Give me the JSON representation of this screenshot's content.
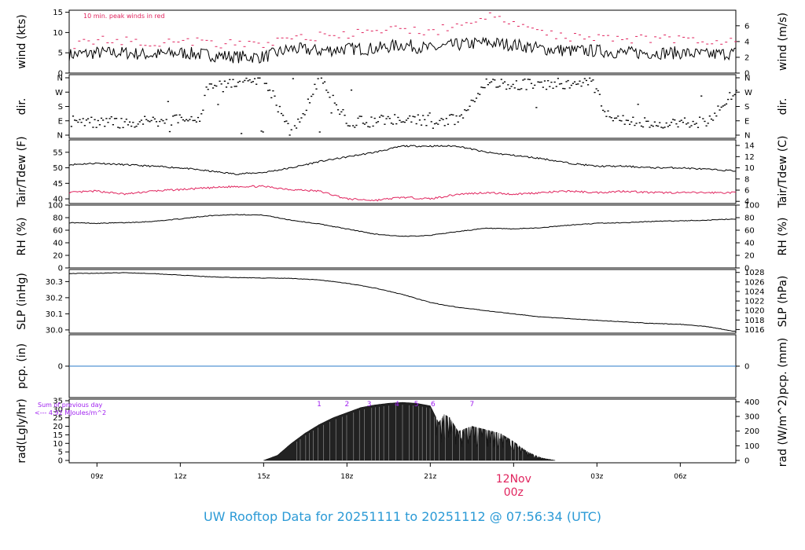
{
  "footer_title": "UW Rooftop Data for 20251111  to  20251112 @ 07:56:34  (UTC)",
  "colors": {
    "main": "#000000",
    "red": "#e0245e",
    "blue": "#2b7bc8",
    "purple": "#a020f0",
    "title": "#2b9ad6"
  },
  "chart_data": [
    {
      "type": "line",
      "panel": "wind",
      "ylabel_left": "wind (kts)",
      "ylabel_right": "wind (m/s)",
      "ylim": [
        0,
        15
      ],
      "yticks_left": [
        0,
        5,
        10,
        15
      ],
      "yticks_right": [
        0,
        2,
        4,
        6
      ],
      "annotation": "10 min. peak winds in red",
      "series": [
        {
          "name": "wind",
          "color": "#000000",
          "x": [
            8.0,
            9,
            10,
            11,
            12,
            13,
            14,
            15,
            16,
            17,
            18,
            19,
            20,
            21,
            22,
            23,
            24,
            25,
            26,
            27,
            28,
            29,
            30,
            31,
            32.0
          ],
          "values": [
            4.5,
            5,
            5,
            4.5,
            5,
            4.5,
            4,
            4,
            6,
            5.5,
            6,
            6,
            7,
            6,
            7,
            7.5,
            7,
            6,
            5.5,
            5.5,
            5,
            5,
            5,
            4.5,
            5
          ]
        },
        {
          "name": "10 min. peak winds",
          "color": "#e0245e",
          "x": [
            8.0,
            9,
            10,
            11,
            12,
            13,
            14,
            15,
            16,
            17,
            18,
            19,
            20,
            21,
            22,
            23,
            24,
            25,
            26,
            27,
            28,
            29,
            30,
            31,
            32.0
          ],
          "values": [
            7,
            8,
            8,
            7.5,
            8,
            7.5,
            7,
            7,
            9,
            9,
            9.5,
            10,
            11,
            10,
            12,
            14,
            12,
            10,
            9,
            9,
            8.5,
            8.5,
            8.5,
            8,
            8
          ]
        }
      ]
    },
    {
      "type": "scatter",
      "panel": "dir",
      "ylabel_left": "dir.",
      "ylabel_right": "dir.",
      "ytick_labels": [
        "N",
        "E",
        "S",
        "W",
        "N"
      ],
      "series": [
        {
          "name": "dir",
          "x": [
            8.0,
            9,
            10,
            11,
            12,
            12.7,
            13,
            13.5,
            14,
            14.5,
            15,
            16,
            17,
            18,
            19,
            20,
            21,
            22,
            23,
            24,
            25,
            26,
            26.8,
            27.3,
            28,
            29,
            30,
            31,
            32.0
          ],
          "values": [
            90,
            80,
            80,
            85,
            95,
            110,
            340,
            300,
            330,
            350,
            355,
            0,
            355,
            80,
            90,
            100,
            90,
            100,
            330,
            320,
            320,
            325,
            330,
            140,
            90,
            80,
            80,
            85,
            300
          ]
        }
      ]
    },
    {
      "type": "line",
      "panel": "temp",
      "ylabel_left": "Tair/Tdew (F)",
      "ylabel_right": "Tair/Tdew (C)",
      "ylim": [
        38.5,
        59
      ],
      "yticks_left": [
        40,
        45,
        50,
        55
      ],
      "yticks_right": [
        4,
        6,
        8,
        10,
        12,
        14
      ],
      "series": [
        {
          "name": "Tair",
          "color": "#000000",
          "x": [
            8.0,
            9,
            10,
            11,
            12,
            13,
            14,
            15,
            16,
            17,
            18,
            19,
            20,
            21,
            22,
            23,
            24,
            25,
            26,
            27,
            28,
            29,
            30,
            31,
            32.0
          ],
          "values": [
            51,
            51.5,
            51,
            50.5,
            50,
            49,
            48,
            48.5,
            50,
            52,
            53.5,
            55,
            57,
            57,
            57,
            55,
            54,
            53,
            51.5,
            50.5,
            50.5,
            50,
            50,
            49.5,
            49
          ]
        },
        {
          "name": "Tdew",
          "color": "#e0245e",
          "x": [
            8.0,
            9,
            10,
            11,
            12,
            13,
            14,
            15,
            16,
            17,
            18,
            19,
            20,
            21,
            22,
            23,
            24,
            25,
            26,
            27,
            28,
            29,
            30,
            31,
            32.0
          ],
          "values": [
            42,
            42.5,
            41.5,
            42.5,
            43,
            43.5,
            44,
            44,
            43,
            42.5,
            40,
            39.5,
            40.5,
            40,
            41.5,
            42,
            41.5,
            42,
            42.5,
            42,
            42.5,
            42,
            42,
            42,
            42
          ]
        }
      ]
    },
    {
      "type": "line",
      "panel": "rh",
      "ylabel_left": "RH (%)",
      "ylabel_right": "RH (%)",
      "ylim": [
        0,
        100
      ],
      "yticks_left": [
        0,
        20,
        40,
        60,
        80,
        100
      ],
      "yticks_right": [
        0,
        20,
        40,
        60,
        80,
        100
      ],
      "series": [
        {
          "name": "RH",
          "color": "#000000",
          "x": [
            8.0,
            9,
            10,
            11,
            12,
            13,
            14,
            15,
            16,
            17,
            18,
            19,
            20,
            21,
            22,
            23,
            24,
            25,
            26,
            27,
            28,
            29,
            30,
            31,
            32.0
          ],
          "values": [
            72,
            71,
            72,
            74,
            78,
            83,
            85,
            84,
            76,
            70,
            62,
            54,
            50,
            52,
            58,
            63,
            62,
            64,
            68,
            71,
            72,
            74,
            75,
            76,
            78
          ]
        }
      ]
    },
    {
      "type": "line",
      "panel": "slp",
      "ylabel_left": "SLP (inHg)",
      "ylabel_right": "SLP (hPa)",
      "ylim": [
        29.98,
        30.375
      ],
      "yticks_left": [
        30.0,
        30.1,
        30.2,
        30.3
      ],
      "yticks_right": [
        1016,
        1018,
        1020,
        1022,
        1024,
        1026,
        1028
      ],
      "series": [
        {
          "name": "SLP",
          "color": "#000000",
          "x": [
            8.0,
            9,
            10,
            11,
            12,
            13,
            14,
            15,
            16,
            17,
            18,
            19,
            20,
            21,
            22,
            23,
            24,
            25,
            26,
            27,
            28,
            29,
            30,
            31,
            32.0
          ],
          "values": [
            30.35,
            30.352,
            30.355,
            30.35,
            30.34,
            30.33,
            30.325,
            30.322,
            30.32,
            30.31,
            30.29,
            30.26,
            30.22,
            30.17,
            30.14,
            30.12,
            30.1,
            30.08,
            30.07,
            30.06,
            30.05,
            30.04,
            30.035,
            30.02,
            29.99
          ]
        }
      ]
    },
    {
      "type": "line",
      "panel": "pcp",
      "ylabel_left": "pcp. (in)",
      "ylabel_right": "pcp. (mm)",
      "yticks_left": [
        0
      ],
      "yticks_right": [
        0
      ],
      "series": [
        {
          "name": "pcp",
          "color": "#2b7bc8",
          "x": [
            8.0,
            32.0
          ],
          "values": [
            0,
            0
          ]
        }
      ]
    },
    {
      "type": "area",
      "panel": "rad",
      "ylabel_left": "rad(Lgly/hr)",
      "ylabel_right": "rad (W/m^2)",
      "ylim": [
        0,
        35
      ],
      "yticks_left": [
        0,
        5,
        10,
        15,
        20,
        25,
        30,
        35
      ],
      "yticks_right": [
        0,
        100,
        200,
        300,
        400
      ],
      "annotation_1": "Sum of previous day",
      "annotation_2": "<--- 4.92 MJoules/m^2",
      "hour_markers": [
        "1",
        "2",
        "3",
        "4",
        "5",
        "6",
        "7"
      ],
      "hour_marker_x": [
        17.0,
        18.0,
        18.8,
        19.8,
        20.5,
        21.1,
        22.5
      ],
      "series": [
        {
          "name": "rad",
          "color": "#000000",
          "x": [
            15.0,
            15.5,
            16.0,
            16.5,
            17.0,
            17.5,
            18.0,
            18.5,
            19.0,
            19.5,
            20.0,
            20.5,
            21.0,
            21.3,
            21.5,
            21.7,
            22.0,
            22.5,
            23.0,
            23.5,
            24.0,
            24.5,
            25.0,
            25.5
          ],
          "values": [
            0,
            3,
            10,
            16,
            21,
            25,
            28,
            31,
            32.5,
            33.5,
            34,
            33.5,
            32,
            22,
            27,
            25,
            17,
            20,
            18,
            16,
            11,
            5,
            1.5,
            0
          ]
        }
      ]
    }
  ],
  "x_axis": {
    "ticks": [
      "09z",
      "12z",
      "15z",
      "18z",
      "21z",
      "",
      "03z",
      "06z"
    ],
    "tick_hours": [
      9,
      12,
      15,
      18,
      21,
      24,
      27,
      30
    ],
    "date_label": "12Nov",
    "date_sublabel": "00z",
    "date_hour": 24
  }
}
